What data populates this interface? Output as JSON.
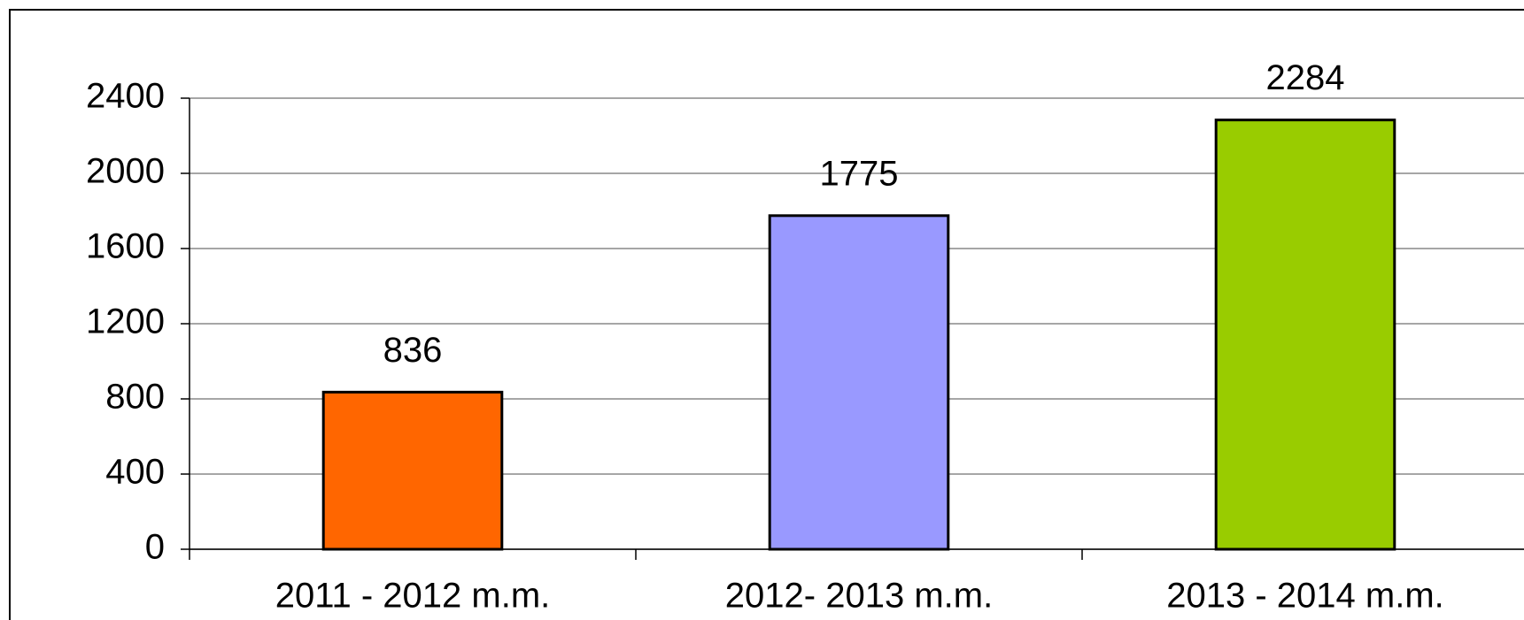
{
  "chart_data": {
    "type": "bar",
    "categories": [
      "2011 - 2012 m.m.",
      "2012- 2013 m.m.",
      "2013 - 2014 m.m."
    ],
    "values": [
      836,
      1775,
      2284
    ],
    "colors": [
      "#ff6600",
      "#9999ff",
      "#99cc00"
    ],
    "ylim": [
      0,
      2400
    ],
    "yticks": [
      0,
      400,
      800,
      1200,
      1600,
      2000,
      2400
    ],
    "grid": true
  }
}
